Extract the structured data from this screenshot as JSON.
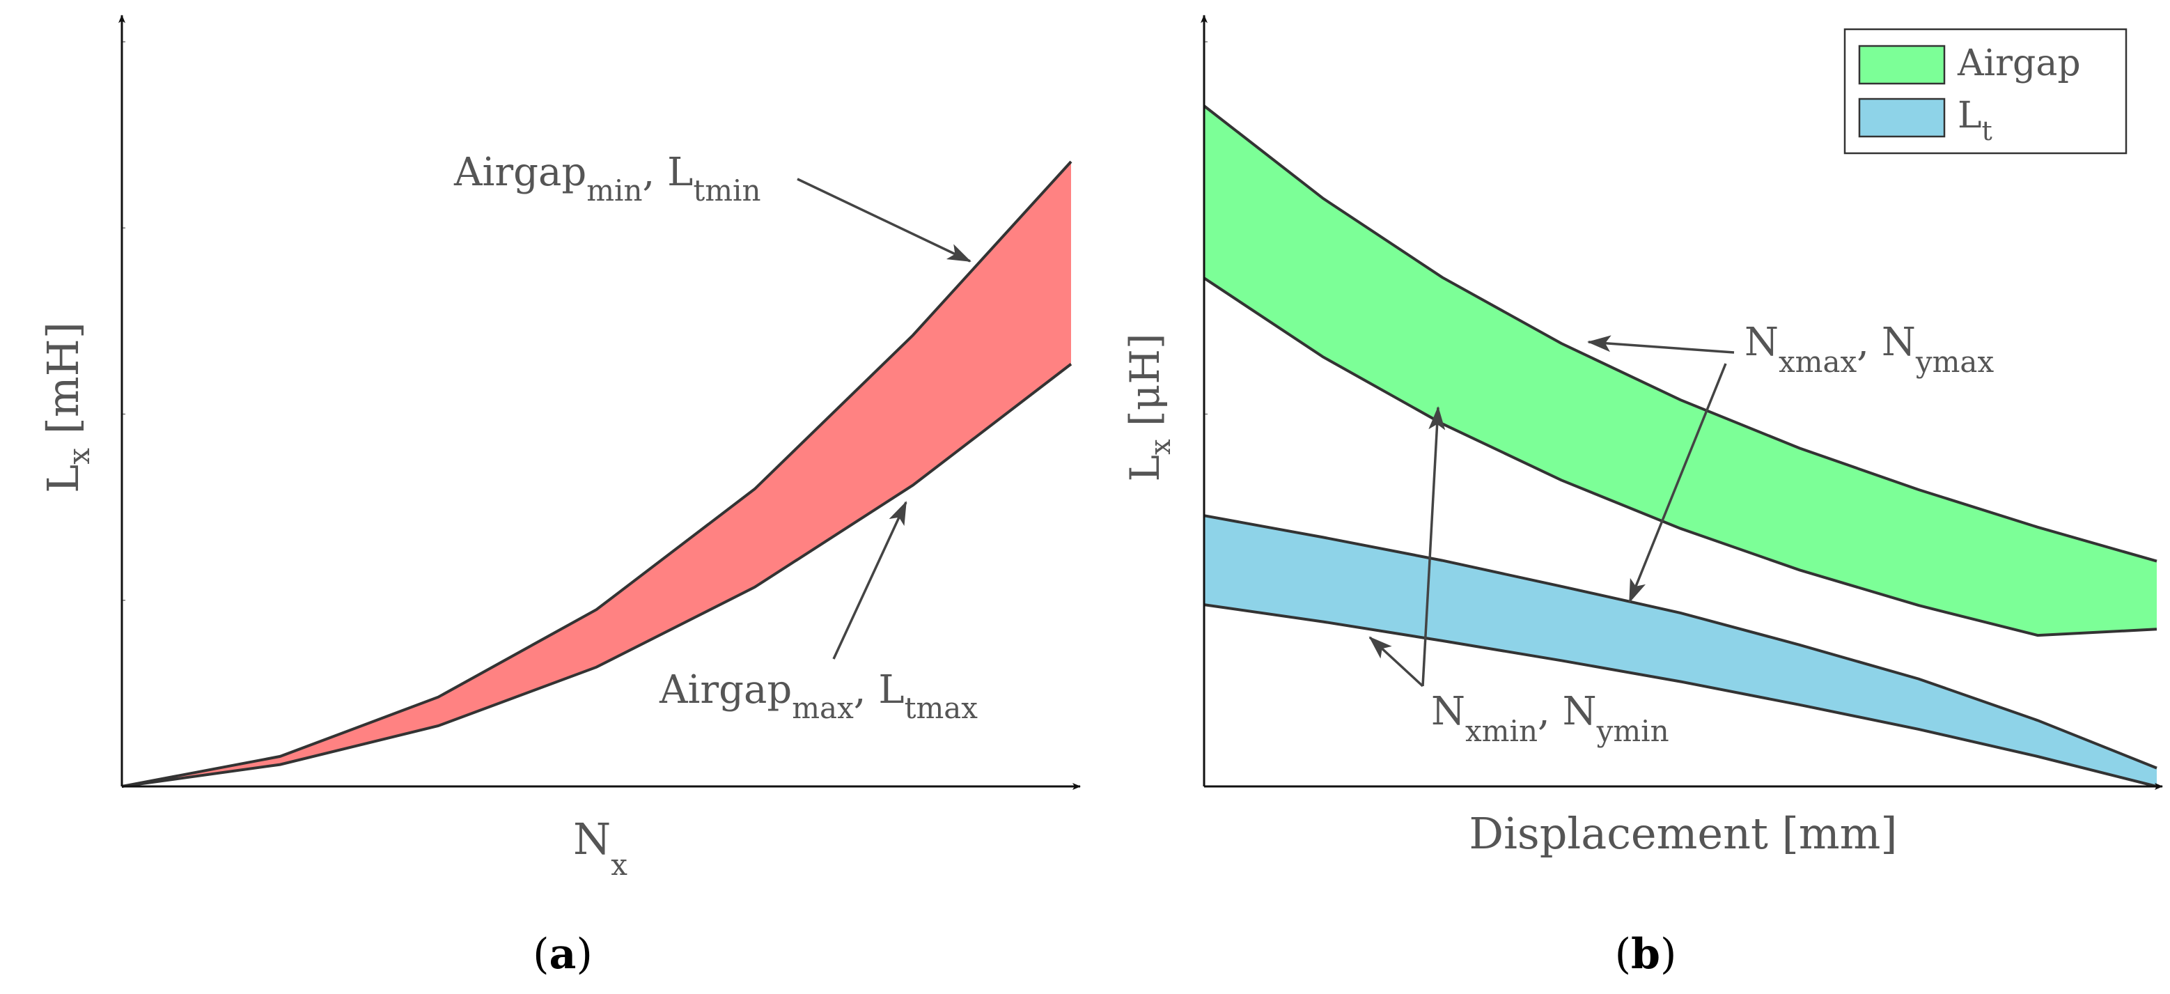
{
  "panels": [
    {
      "caption": "a",
      "ylabel_main": "L",
      "ylabel_sub": "x",
      "ylabel_unit": " [mH]",
      "xlabel_main": "N",
      "xlabel_sub": "x",
      "annotations": [
        {
          "main": "Airgap",
          "sub": "min",
          "sep": ", L",
          "sub2": "tmin"
        },
        {
          "main": "Airgap",
          "sub": "max",
          "sep": ", L",
          "sub2": "tmax"
        }
      ]
    },
    {
      "caption": "b",
      "ylabel_main": "L",
      "ylabel_sub": "x",
      "ylabel_unit": " [μH]",
      "xlabel": "Displacement [mm]",
      "annotations": [
        {
          "main": "N",
          "sub": "xmax",
          "sep": ", N",
          "sub2": "ymax"
        },
        {
          "main": "N",
          "sub": "xmin",
          "sep": ", N",
          "sub2": "ymin"
        }
      ],
      "legend": [
        {
          "label_main": "Airgap",
          "label_sub": "",
          "color": "#7cff97"
        },
        {
          "label_main": "L",
          "label_sub": "t",
          "color": "#8ed3e8"
        }
      ]
    }
  ],
  "chart_data": [
    {
      "type": "area",
      "title": "",
      "xlabel": "N_x",
      "ylabel": "L_x [mH]",
      "x": [
        0,
        1,
        2,
        3,
        4,
        5,
        6
      ],
      "xlim": [
        0,
        6
      ],
      "ylim": [
        0,
        1
      ],
      "fill_color": "#ff8282",
      "band": {
        "upper": [
          0,
          0.048,
          0.143,
          0.283,
          0.476,
          0.722,
          1.0
        ],
        "lower": [
          0,
          0.035,
          0.097,
          0.191,
          0.319,
          0.482,
          0.676
        ]
      }
    },
    {
      "type": "area",
      "title": "",
      "xlabel": "Displacement [mm]",
      "ylabel": "L_x [μH]",
      "x": [
        0,
        0.125,
        0.25,
        0.375,
        0.5,
        0.625,
        0.75,
        0.875,
        1.0
      ],
      "xlim": [
        0,
        1
      ],
      "ylim": [
        0,
        1
      ],
      "series": [
        {
          "name": "Airgap",
          "color": "#7cff97",
          "upper": [
            1.0,
            0.864,
            0.748,
            0.651,
            0.568,
            0.497,
            0.436,
            0.381,
            0.331
          ],
          "lower": [
            0.747,
            0.631,
            0.533,
            0.45,
            0.379,
            0.318,
            0.266,
            0.222,
            0.231
          ]
        },
        {
          "name": "L_t",
          "color": "#8ed3e8",
          "upper": [
            0.398,
            0.366,
            0.332,
            0.294,
            0.255,
            0.208,
            0.158,
            0.097,
            0.027
          ],
          "lower": [
            0.267,
            0.242,
            0.214,
            0.185,
            0.154,
            0.12,
            0.084,
            0.044,
            0.0
          ]
        }
      ],
      "legend_position": "top-right"
    }
  ]
}
